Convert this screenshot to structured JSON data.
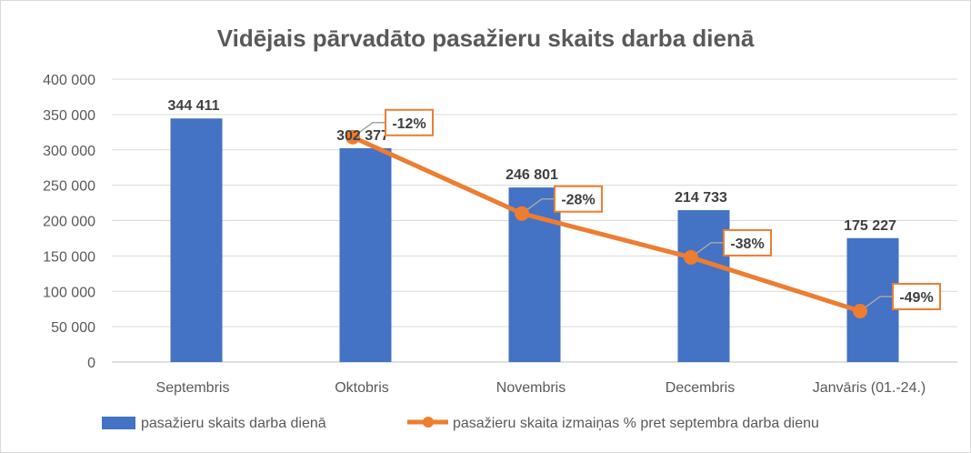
{
  "chart_data": {
    "type": "bar",
    "title": "Vidējais pārvadāto pasažieru skaits darba dienā",
    "categories": [
      "Septembris",
      "Oktobris",
      "Novembris",
      "Decembris",
      "Janvāris (01.-24.)"
    ],
    "ylim": [
      0,
      400000
    ],
    "yticks": [
      0,
      50000,
      100000,
      150000,
      200000,
      250000,
      300000,
      350000,
      400000
    ],
    "ytick_labels": [
      "0",
      "50 000",
      "100 000",
      "150 000",
      "200 000",
      "250 000",
      "300 000",
      "350 000",
      "400 000"
    ],
    "grid": true,
    "legend_position": "bottom",
    "series": [
      {
        "name": "pasažieru skaits darba dienā",
        "type": "bar",
        "color": "#4472c4",
        "values": [
          344411,
          302377,
          246801,
          214733,
          175227
        ],
        "labels": [
          "344 411",
          "302 377",
          "246 801",
          "214 733",
          "175 227"
        ]
      },
      {
        "name": "pasažieru skaita izmaiņas % pret septembra darba dienu",
        "type": "line",
        "color": "#ed7d31",
        "x_categories": [
          "Oktobris",
          "Novembris",
          "Decembris",
          "Janvāris (01.-24.)"
        ],
        "values_on_primary_axis": [
          318000,
          210000,
          148000,
          72000
        ],
        "labels": [
          "-12%",
          "-28%",
          "-38%",
          "-49%"
        ]
      }
    ]
  }
}
